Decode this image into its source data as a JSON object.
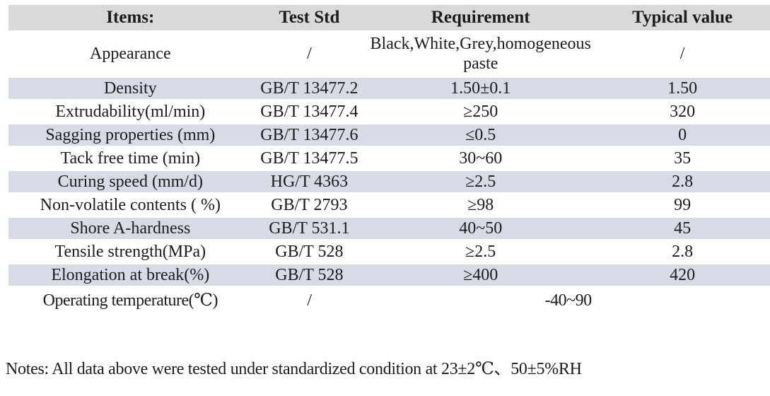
{
  "table": {
    "columns": [
      "Items:",
      "Test Std",
      "Requirement",
      "Typical value"
    ],
    "rows": [
      {
        "item": "Appearance",
        "std": "/",
        "req": "Black,White,Grey,homogeneous paste",
        "typ": "/"
      },
      {
        "item": "Density",
        "std": "GB/T 13477.2",
        "req": "1.50±0.1",
        "typ": "1.50"
      },
      {
        "item": "Extrudability(ml/min)",
        "std": "GB/T 13477.4",
        "req": "≥250",
        "typ": "320"
      },
      {
        "item": "Sagging properties (mm)",
        "std": "GB/T 13477.6",
        "req": "≤0.5",
        "typ": "0"
      },
      {
        "item": "Tack free time (min)",
        "std": "GB/T 13477.5",
        "req": "30~60",
        "typ": "35"
      },
      {
        "item": "Curing speed (mm/d)",
        "std": "HG/T 4363",
        "req": "≥2.5",
        "typ": "2.8"
      },
      {
        "item": "Non-volatile contents ( %)",
        "std": "GB/T 2793",
        "req": "≥98",
        "typ": "99"
      },
      {
        "item": "Shore A-hardness",
        "std": "GB/T 531.1",
        "req": "40~50",
        "typ": "45"
      },
      {
        "item": "Tensile strength(MPa)",
        "std": "GB/T 528",
        "req": "≥2.5",
        "typ": "2.8"
      },
      {
        "item": "Elongation at break(%)",
        "std": "GB/T 528",
        "req": "≥400",
        "typ": "420"
      },
      {
        "item": "Operating temperature(℃)",
        "std": "/",
        "req": "-40~90",
        "typ": "",
        "req_colspan": 2
      }
    ]
  },
  "notes": "Notes: All data above were tested under standardized condition at 23±2℃、50±5%RH",
  "colors": {
    "header_bg": "#d9d9d9",
    "stripe_bg": "#d6dbe5",
    "separator": "#ffffff",
    "text": "#1c1c1c"
  }
}
